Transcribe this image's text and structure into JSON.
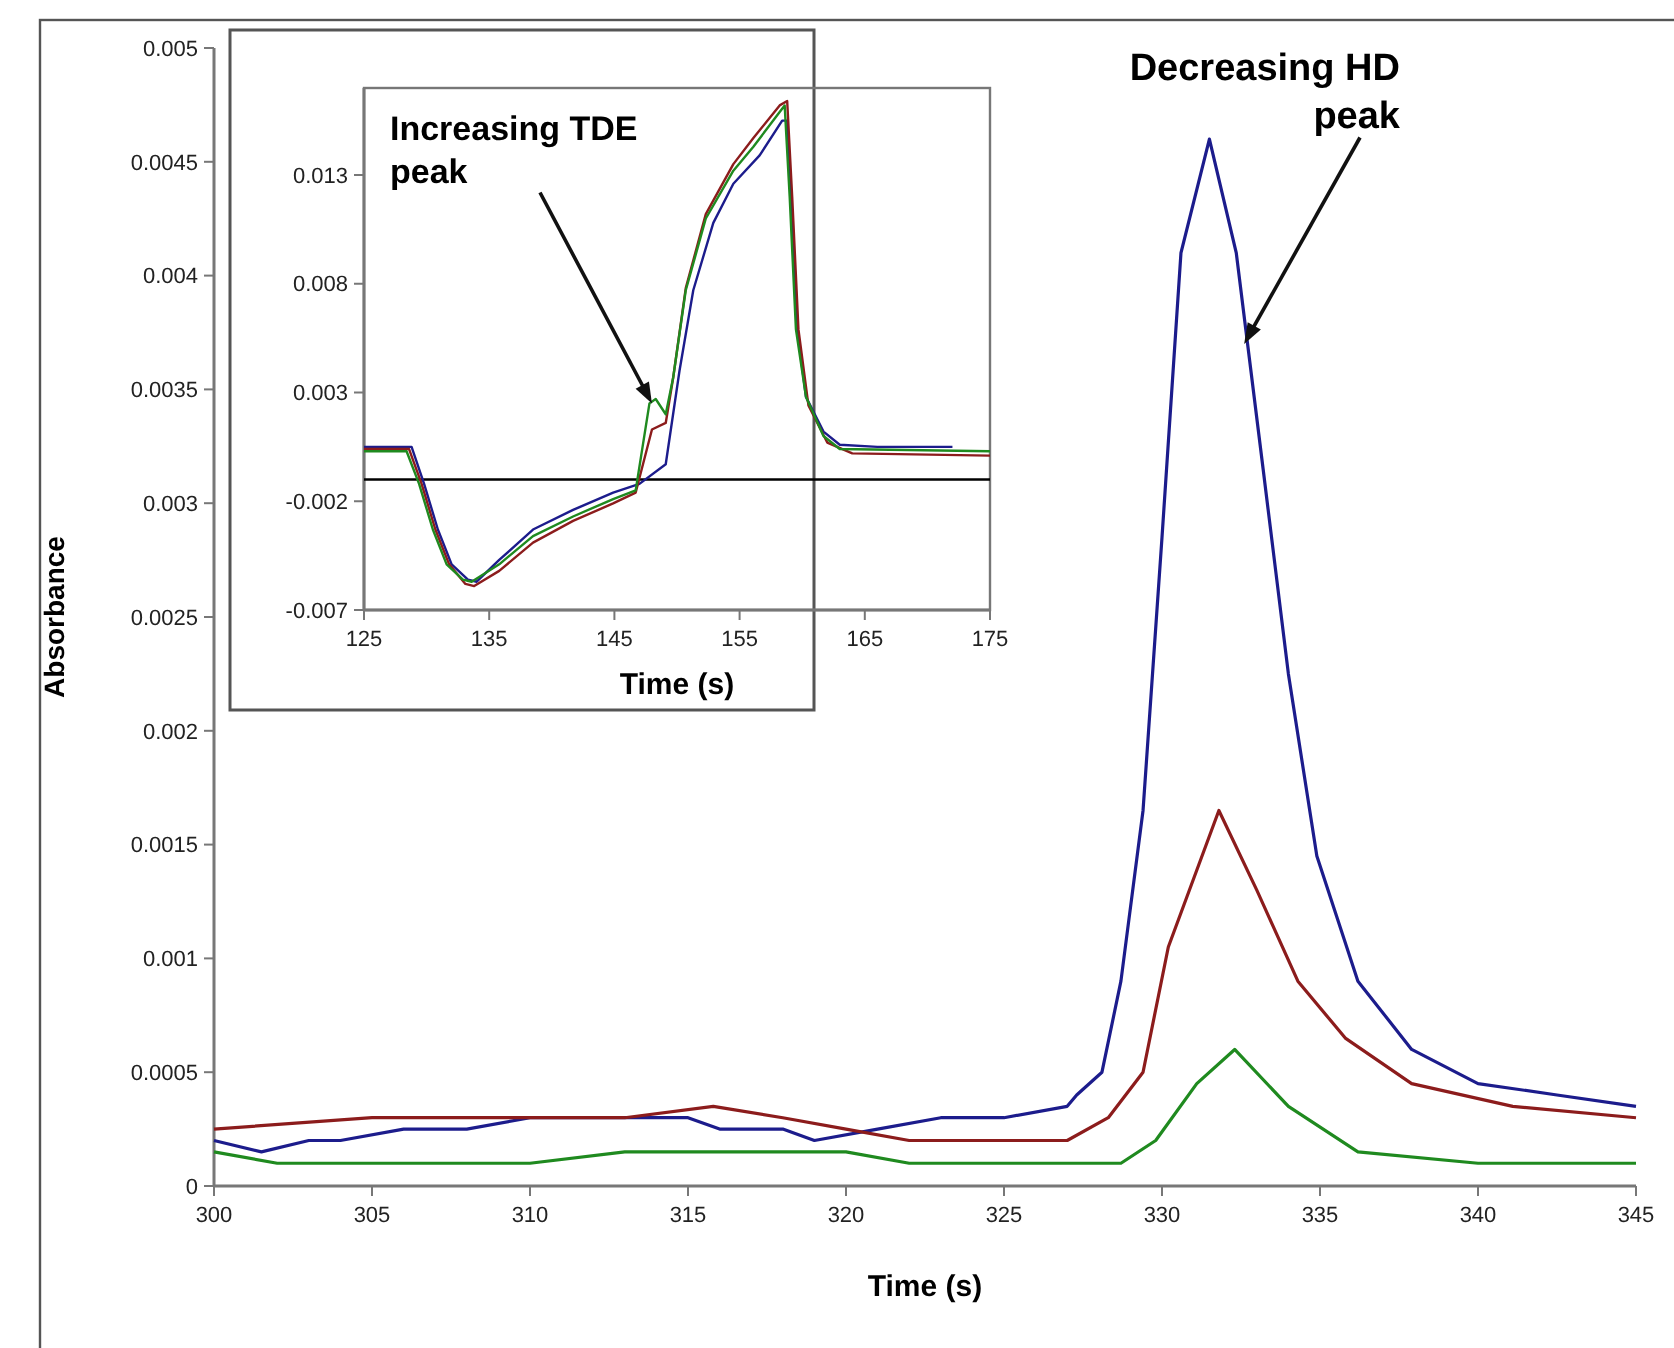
{
  "chart_data": [
    {
      "type": "line",
      "xlabel": "Time (s)",
      "ylabel": "Absorbance",
      "xlim": [
        300,
        345
      ],
      "xticks": [
        300,
        305,
        310,
        315,
        320,
        325,
        330,
        335,
        340,
        345
      ],
      "ylim": [
        0,
        0.005
      ],
      "yticks": [
        0,
        0.0005,
        0.001,
        0.0015,
        0.002,
        0.0025,
        0.003,
        0.0035,
        0.004,
        0.0045,
        0.005
      ],
      "grid": false,
      "marker": "none",
      "line_style": "solid",
      "annotations": [
        {
          "text": "Decreasing HD peak",
          "x": 332.6,
          "y": 0.0037
        }
      ],
      "series": [
        {
          "color": "#1c1c8c",
          "x": [
            300,
            301.5,
            303,
            304,
            306,
            308,
            310,
            313,
            315,
            316,
            318,
            319,
            321,
            323,
            325,
            327,
            327.3,
            328.1,
            328.7,
            329.4,
            330,
            330.6,
            331.5,
            332.35,
            333.2,
            334,
            334.9,
            336.2,
            337.9,
            340,
            342.5,
            345
          ],
          "values": [
            0.0002,
            0.00015,
            0.0002,
            0.0002,
            0.00025,
            0.00025,
            0.0003,
            0.0003,
            0.0003,
            0.00025,
            0.00025,
            0.0002,
            0.00025,
            0.0003,
            0.0003,
            0.00035,
            0.0004,
            0.0005,
            0.0009,
            0.00165,
            0.00285,
            0.0041,
            0.0046,
            0.0041,
            0.00315,
            0.00225,
            0.00145,
            0.0009,
            0.0006,
            0.00045,
            0.0004,
            0.00035
          ]
        },
        {
          "color": "#8c1c1c",
          "x": [
            300,
            305,
            310,
            313,
            315.8,
            318,
            320,
            322,
            325,
            327,
            328.3,
            329.4,
            330.2,
            331.8,
            333,
            334.3,
            335.8,
            337.9,
            341.1,
            345
          ],
          "values": [
            0.00025,
            0.0003,
            0.0003,
            0.0003,
            0.00035,
            0.0003,
            0.00025,
            0.0002,
            0.0002,
            0.0002,
            0.0003,
            0.0005,
            0.00105,
            0.00165,
            0.0013,
            0.0009,
            0.00065,
            0.00045,
            0.00035,
            0.0003
          ]
        },
        {
          "color": "#1f8a1f",
          "x": [
            300,
            302,
            305,
            308,
            310,
            313,
            315.8,
            318,
            320,
            322,
            324,
            327,
            328.7,
            329.8,
            331.1,
            332.3,
            334,
            336.2,
            340,
            345
          ],
          "values": [
            0.00015,
            0.0001,
            0.0001,
            0.0001,
            0.0001,
            0.00015,
            0.00015,
            0.00015,
            0.00015,
            0.0001,
            0.0001,
            0.0001,
            0.0001,
            0.0002,
            0.00045,
            0.0006,
            0.00035,
            0.00015,
            0.0001,
            0.0001
          ]
        }
      ]
    },
    {
      "type": "line",
      "xlabel": "Time (s)",
      "xlim": [
        125,
        175
      ],
      "xticks": [
        125,
        135,
        145,
        155,
        165,
        175
      ],
      "ylim": [
        -0.007,
        0.017
      ],
      "yticks": [
        -0.007,
        -0.002,
        0.003,
        0.008,
        0.013
      ],
      "grid": false,
      "marker": "none",
      "line_style": "solid",
      "ref_lines": [
        {
          "axis": "y",
          "value": -0.001,
          "color": "#000000"
        }
      ],
      "annotations": [
        {
          "text": "Increasing TDE peak",
          "x": 148,
          "y": 0.0025
        }
      ],
      "series": [
        {
          "color": "#1c1c8c",
          "x": [
            125,
            128.8,
            129.8,
            130.9,
            132,
            133.3,
            134,
            135.8,
            138.5,
            141.7,
            144.9,
            147,
            149.1,
            150.2,
            151.3,
            152.9,
            154.5,
            156.6,
            158.4,
            158.8,
            159.2,
            159.6,
            160.3,
            161.7,
            163,
            166,
            172
          ],
          "values": [
            0.0005,
            0.0005,
            -0.0012,
            -0.0033,
            -0.0049,
            -0.0056,
            -0.0057,
            -0.0047,
            -0.0033,
            -0.0024,
            -0.0016,
            -0.0012,
            -0.0003,
            0.004,
            0.0077,
            0.0108,
            0.0126,
            0.0139,
            0.0155,
            0.0155,
            0.011,
            0.0059,
            0.0028,
            0.0012,
            0.0006,
            0.0005,
            0.0005
          ]
        },
        {
          "color": "#8c1c1c",
          "x": [
            125,
            128.6,
            129.6,
            130.7,
            131.8,
            133.1,
            133.8,
            135.8,
            138.5,
            141.7,
            144.9,
            146.7,
            148,
            149.1,
            149.7,
            150.7,
            152.3,
            154.5,
            156.1,
            158.2,
            158.8,
            159.2,
            159.7,
            160.5,
            162,
            164,
            175
          ],
          "values": [
            0.0004,
            0.0004,
            -0.0012,
            -0.0033,
            -0.0049,
            -0.0058,
            -0.0059,
            -0.0052,
            -0.0039,
            -0.0029,
            -0.0021,
            -0.0016,
            0.0013,
            0.0016,
            0.0037,
            0.0078,
            0.0112,
            0.0135,
            0.0147,
            0.0162,
            0.0164,
            0.012,
            0.0059,
            0.0024,
            0.0007,
            0.0002,
            0.0001
          ]
        },
        {
          "color": "#1f8a1f",
          "x": [
            125,
            128.4,
            129.4,
            130.5,
            131.6,
            132.9,
            133.6,
            135.8,
            138.5,
            141.7,
            144.9,
            146.7,
            147.8,
            148.3,
            149.1,
            149.7,
            150.7,
            152.3,
            154.5,
            156.1,
            158.2,
            158.6,
            159,
            159.5,
            160.3,
            161.7,
            163,
            175
          ],
          "values": [
            0.0003,
            0.0003,
            -0.0012,
            -0.0033,
            -0.0049,
            -0.0056,
            -0.0057,
            -0.0049,
            -0.0036,
            -0.0027,
            -0.0019,
            -0.0015,
            0.0025,
            0.0027,
            0.002,
            0.0037,
            0.0077,
            0.011,
            0.0132,
            0.0143,
            0.0159,
            0.0162,
            0.012,
            0.0059,
            0.0028,
            0.001,
            0.0004,
            0.0003
          ]
        }
      ]
    }
  ]
}
